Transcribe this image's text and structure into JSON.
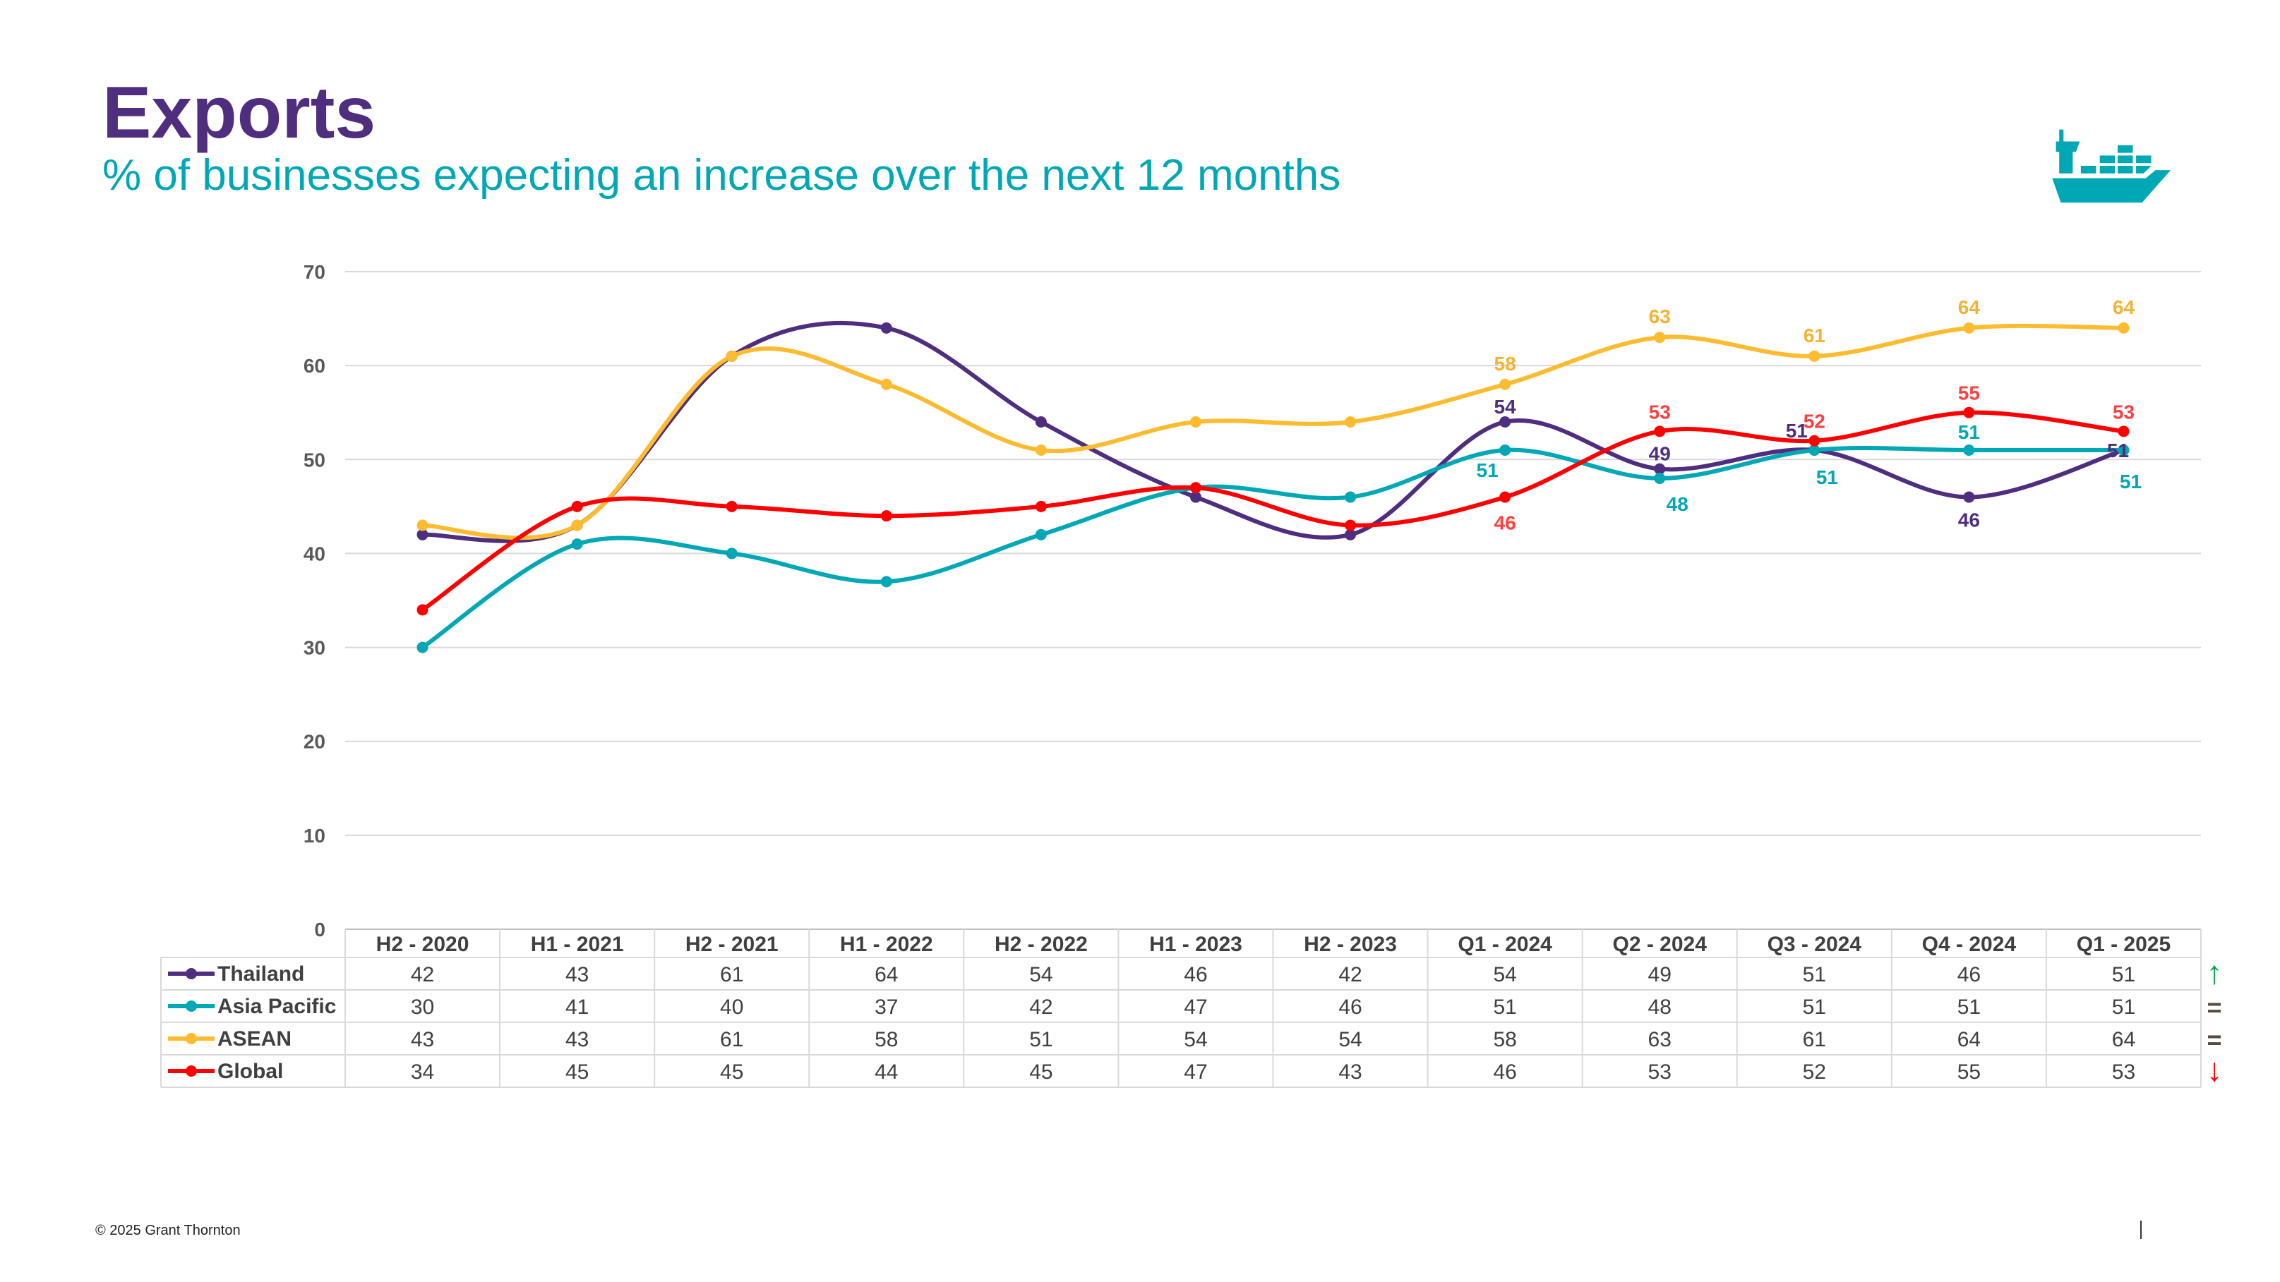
{
  "header": {
    "title": "Exports",
    "subtitle": "% of businesses expecting an increase over the next 12 months",
    "icon": "cargo-ship-icon"
  },
  "footer": {
    "copyright": "© 2025  Grant Thornton"
  },
  "chart_data": {
    "type": "line",
    "title": "Exports",
    "subtitle": "% of businesses expecting an increase over the next 12 months",
    "xlabel": "",
    "ylabel": "",
    "ylim": [
      0,
      70
    ],
    "yticks": [
      0,
      10,
      20,
      30,
      40,
      50,
      60,
      70
    ],
    "grid": true,
    "legend": "data-table-bottom",
    "categories": [
      "H2 - 2020",
      "H1 - 2021",
      "H2 - 2021",
      "H1 - 2022",
      "H2 - 2022",
      "H1 - 2023",
      "H2 - 2023",
      "Q1 - 2024",
      "Q2 - 2024",
      "Q3 - 2024",
      "Q4 - 2024",
      "Q1 - 2025"
    ],
    "series": [
      {
        "name": "Thailand",
        "color": "#4F2D7F",
        "label_color": "#4F2D7F",
        "values": [
          42,
          43,
          61,
          64,
          54,
          46,
          42,
          54,
          49,
          51,
          46,
          51
        ],
        "trend": "up",
        "trend_symbol": "↑",
        "trend_color": "#00A651"
      },
      {
        "name": "Asia Pacific",
        "color": "#00A7B5",
        "label_color": "#00A7B5",
        "values": [
          30,
          41,
          40,
          37,
          42,
          47,
          46,
          51,
          48,
          51,
          51,
          51
        ],
        "trend": "same",
        "trend_symbol": "=",
        "trend_color": "#5a4a3a"
      },
      {
        "name": "ASEAN",
        "color": "#FDBB30",
        "label_color": "#F5B335",
        "values": [
          43,
          43,
          61,
          58,
          51,
          54,
          54,
          58,
          63,
          61,
          64,
          64
        ],
        "trend": "same",
        "trend_symbol": "=",
        "trend_color": "#5a4a3a"
      },
      {
        "name": "Global",
        "color": "#FF0000",
        "label_color": "#FF4040",
        "values": [
          34,
          45,
          45,
          44,
          45,
          47,
          43,
          46,
          53,
          52,
          55,
          53
        ],
        "trend": "down",
        "trend_symbol": "↓",
        "trend_color": "#FF0000"
      }
    ],
    "data_labels_from_index": 7
  }
}
